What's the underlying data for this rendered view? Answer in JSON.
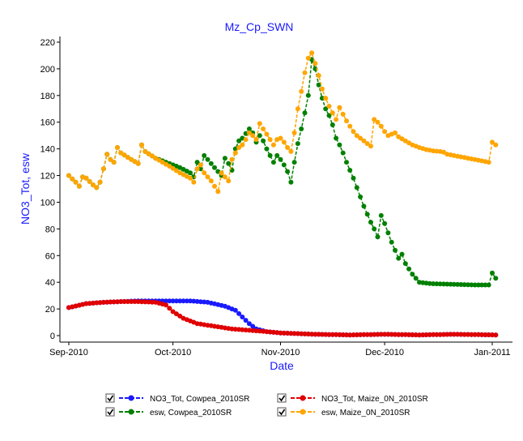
{
  "chart_data": {
    "type": "line",
    "title": "Mz_Cp_SWN",
    "xlabel": "Date",
    "ylabel": "NO3_Tot, esw",
    "xlim": [
      "2010-08-30",
      "2011-01-04"
    ],
    "ylim": [
      0,
      220
    ],
    "y_ticks": [
      0,
      20,
      40,
      60,
      80,
      100,
      120,
      140,
      160,
      180,
      200,
      220
    ],
    "x_ticks": [
      {
        "date": "2010-09-01",
        "label": "Sep-2010"
      },
      {
        "date": "2010-10-01",
        "label": "Oct-2010"
      },
      {
        "date": "2010-11-01",
        "label": "Nov-2010"
      },
      {
        "date": "2010-12-01",
        "label": "Dec-2010"
      },
      {
        "date": "2011-01-01",
        "label": "Jan-2011"
      }
    ],
    "grid": false,
    "legend_position": "bottom",
    "series": [
      {
        "name": "NO3_Tot, Cowpea_2010SR",
        "color": "#1a1aff",
        "checked": true,
        "points": [
          [
            "2010-09-01",
            21
          ],
          [
            "2010-09-06",
            24
          ],
          [
            "2010-09-11",
            25
          ],
          [
            "2010-09-16",
            25.5
          ],
          [
            "2010-09-21",
            26
          ],
          [
            "2010-09-26",
            26
          ],
          [
            "2010-10-01",
            26
          ],
          [
            "2010-10-06",
            26
          ],
          [
            "2010-10-11",
            25
          ],
          [
            "2010-10-16",
            22
          ],
          [
            "2010-10-19",
            19
          ],
          [
            "2010-10-21",
            14
          ],
          [
            "2010-10-23",
            9
          ],
          [
            "2010-10-25",
            5
          ],
          [
            "2010-10-28",
            3
          ],
          [
            "2010-11-01",
            2
          ],
          [
            "2010-11-06",
            1.5
          ],
          [
            "2010-11-11",
            1
          ],
          [
            "2010-11-21",
            0.5
          ],
          [
            "2010-12-01",
            1
          ],
          [
            "2010-12-11",
            0.5
          ],
          [
            "2010-12-21",
            1
          ],
          [
            "2011-01-02",
            0.5
          ]
        ]
      },
      {
        "name": "esw, Cowpea_2010SR",
        "color": "#008000",
        "checked": true,
        "points": [
          [
            "2010-09-01",
            120
          ],
          [
            "2010-09-03",
            115
          ],
          [
            "2010-09-04",
            112
          ],
          [
            "2010-09-05",
            119
          ],
          [
            "2010-09-06",
            118
          ],
          [
            "2010-09-08",
            113
          ],
          [
            "2010-09-09",
            111
          ],
          [
            "2010-09-10",
            115
          ],
          [
            "2010-09-11",
            125
          ],
          [
            "2010-09-12",
            136
          ],
          [
            "2010-09-13",
            132
          ],
          [
            "2010-09-14",
            130
          ],
          [
            "2010-09-15",
            141
          ],
          [
            "2010-09-16",
            137
          ],
          [
            "2010-09-19",
            132
          ],
          [
            "2010-09-21",
            129
          ],
          [
            "2010-09-22",
            143
          ],
          [
            "2010-09-23",
            138
          ],
          [
            "2010-09-26",
            133
          ],
          [
            "2010-09-30",
            129
          ],
          [
            "2010-10-03",
            126
          ],
          [
            "2010-10-06",
            122
          ],
          [
            "2010-10-07",
            119
          ],
          [
            "2010-10-08",
            130
          ],
          [
            "2010-10-09",
            125
          ],
          [
            "2010-10-10",
            135
          ],
          [
            "2010-10-11",
            132
          ],
          [
            "2010-10-13",
            126
          ],
          [
            "2010-10-14",
            123
          ],
          [
            "2010-10-15",
            120
          ],
          [
            "2010-10-16",
            133
          ],
          [
            "2010-10-17",
            129
          ],
          [
            "2010-10-18",
            124
          ],
          [
            "2010-10-19",
            140
          ],
          [
            "2010-10-20",
            146
          ],
          [
            "2010-10-21",
            148
          ],
          [
            "2010-10-23",
            155
          ],
          [
            "2010-10-24",
            152
          ],
          [
            "2010-10-25",
            145
          ],
          [
            "2010-10-26",
            150
          ],
          [
            "2010-10-27",
            146
          ],
          [
            "2010-10-28",
            140
          ],
          [
            "2010-10-29",
            135
          ],
          [
            "2010-10-30",
            130
          ],
          [
            "2010-10-31",
            135
          ],
          [
            "2010-11-01",
            132
          ],
          [
            "2010-11-02",
            128
          ],
          [
            "2010-11-03",
            123
          ],
          [
            "2010-11-04",
            115
          ],
          [
            "2010-11-05",
            130
          ],
          [
            "2010-11-06",
            144
          ],
          [
            "2010-11-07",
            155
          ],
          [
            "2010-11-08",
            167
          ],
          [
            "2010-11-09",
            180
          ],
          [
            "2010-11-10",
            207
          ],
          [
            "2010-11-11",
            200
          ],
          [
            "2010-11-12",
            188
          ],
          [
            "2010-11-13",
            178
          ],
          [
            "2010-11-14",
            170
          ],
          [
            "2010-11-15",
            165
          ],
          [
            "2010-11-16",
            158
          ],
          [
            "2010-11-17",
            148
          ],
          [
            "2010-11-18",
            143
          ],
          [
            "2010-11-19",
            137
          ],
          [
            "2010-11-20",
            130
          ],
          [
            "2010-11-21",
            124
          ],
          [
            "2010-11-22",
            118
          ],
          [
            "2010-11-23",
            111
          ],
          [
            "2010-11-24",
            104
          ],
          [
            "2010-11-25",
            97
          ],
          [
            "2010-11-26",
            91
          ],
          [
            "2010-11-27",
            85
          ],
          [
            "2010-11-28",
            80
          ],
          [
            "2010-11-29",
            74
          ],
          [
            "2010-11-30",
            90
          ],
          [
            "2010-12-01",
            84
          ],
          [
            "2010-12-02",
            77
          ],
          [
            "2010-12-03",
            70
          ],
          [
            "2010-12-04",
            64
          ],
          [
            "2010-12-05",
            58
          ],
          [
            "2010-12-06",
            61
          ],
          [
            "2010-12-07",
            54
          ],
          [
            "2010-12-08",
            50
          ],
          [
            "2010-12-09",
            46
          ],
          [
            "2010-12-10",
            43
          ],
          [
            "2010-12-11",
            40
          ],
          [
            "2010-12-14",
            39
          ],
          [
            "2010-12-20",
            38.5
          ],
          [
            "2010-12-27",
            38
          ],
          [
            "2010-12-31",
            38
          ],
          [
            "2011-01-01",
            47
          ],
          [
            "2011-01-02",
            43
          ]
        ]
      },
      {
        "name": "NO3_Tot, Maize_0N_2010SR",
        "color": "#e00000",
        "checked": true,
        "points": [
          [
            "2010-09-01",
            21
          ],
          [
            "2010-09-06",
            24
          ],
          [
            "2010-09-11",
            25
          ],
          [
            "2010-09-16",
            25.5
          ],
          [
            "2010-09-21",
            25.5
          ],
          [
            "2010-09-26",
            25
          ],
          [
            "2010-09-29",
            23
          ],
          [
            "2010-10-01",
            18
          ],
          [
            "2010-10-04",
            13
          ],
          [
            "2010-10-08",
            9
          ],
          [
            "2010-10-13",
            7
          ],
          [
            "2010-10-18",
            5
          ],
          [
            "2010-10-23",
            4
          ],
          [
            "2010-10-28",
            3
          ],
          [
            "2010-11-01",
            2
          ],
          [
            "2010-11-06",
            1.5
          ],
          [
            "2010-11-11",
            1
          ],
          [
            "2010-11-21",
            0.5
          ],
          [
            "2010-12-01",
            1
          ],
          [
            "2010-12-11",
            0.5
          ],
          [
            "2010-12-21",
            1
          ],
          [
            "2011-01-02",
            0.5
          ]
        ]
      },
      {
        "name": "esw, Maize_0N_2010SR",
        "color": "#ffa500",
        "checked": true,
        "points": [
          [
            "2010-09-01",
            120
          ],
          [
            "2010-09-03",
            115
          ],
          [
            "2010-09-04",
            112
          ],
          [
            "2010-09-05",
            119
          ],
          [
            "2010-09-06",
            118
          ],
          [
            "2010-09-08",
            113
          ],
          [
            "2010-09-09",
            111
          ],
          [
            "2010-09-10",
            115
          ],
          [
            "2010-09-11",
            125
          ],
          [
            "2010-09-12",
            136
          ],
          [
            "2010-09-13",
            132
          ],
          [
            "2010-09-14",
            130
          ],
          [
            "2010-09-15",
            141
          ],
          [
            "2010-09-16",
            137
          ],
          [
            "2010-09-19",
            132
          ],
          [
            "2010-09-21",
            129
          ],
          [
            "2010-09-22",
            143
          ],
          [
            "2010-09-23",
            138
          ],
          [
            "2010-09-26",
            133
          ],
          [
            "2010-09-30",
            127
          ],
          [
            "2010-10-03",
            122
          ],
          [
            "2010-10-06",
            118
          ],
          [
            "2010-10-07",
            115
          ],
          [
            "2010-10-08",
            125
          ],
          [
            "2010-10-09",
            128
          ],
          [
            "2010-10-10",
            122
          ],
          [
            "2010-10-11",
            119
          ],
          [
            "2010-10-12",
            116
          ],
          [
            "2010-10-13",
            112
          ],
          [
            "2010-10-14",
            108
          ],
          [
            "2010-10-15",
            122
          ],
          [
            "2010-10-16",
            119
          ],
          [
            "2010-10-17",
            116
          ],
          [
            "2010-10-18",
            132
          ],
          [
            "2010-10-19",
            137
          ],
          [
            "2010-10-20",
            141
          ],
          [
            "2010-10-21",
            143
          ],
          [
            "2010-10-22",
            147
          ],
          [
            "2010-10-23",
            152
          ],
          [
            "2010-10-24",
            150
          ],
          [
            "2010-10-25",
            147
          ],
          [
            "2010-10-26",
            159
          ],
          [
            "2010-10-27",
            155
          ],
          [
            "2010-10-28",
            151
          ],
          [
            "2010-10-29",
            147
          ],
          [
            "2010-10-30",
            143
          ],
          [
            "2010-10-31",
            147
          ],
          [
            "2010-11-01",
            148
          ],
          [
            "2010-11-02",
            145
          ],
          [
            "2010-11-03",
            141
          ],
          [
            "2010-11-04",
            138
          ],
          [
            "2010-11-05",
            152
          ],
          [
            "2010-11-06",
            170
          ],
          [
            "2010-11-07",
            183
          ],
          [
            "2010-11-08",
            197
          ],
          [
            "2010-11-09",
            208
          ],
          [
            "2010-11-10",
            212
          ],
          [
            "2010-11-11",
            204
          ],
          [
            "2010-11-12",
            195
          ],
          [
            "2010-11-13",
            185
          ],
          [
            "2010-11-14",
            178
          ],
          [
            "2010-11-15",
            172
          ],
          [
            "2010-11-16",
            167
          ],
          [
            "2010-11-17",
            162
          ],
          [
            "2010-11-18",
            171
          ],
          [
            "2010-11-19",
            166
          ],
          [
            "2010-11-20",
            161
          ],
          [
            "2010-11-21",
            157
          ],
          [
            "2010-11-22",
            153
          ],
          [
            "2010-11-23",
            150
          ],
          [
            "2010-11-24",
            148
          ],
          [
            "2010-11-25",
            146
          ],
          [
            "2010-11-26",
            144
          ],
          [
            "2010-11-27",
            142
          ],
          [
            "2010-11-28",
            162
          ],
          [
            "2010-11-29",
            160
          ],
          [
            "2010-11-30",
            157
          ],
          [
            "2010-12-01",
            153
          ],
          [
            "2010-12-02",
            150
          ],
          [
            "2010-12-04",
            152
          ],
          [
            "2010-12-05",
            149
          ],
          [
            "2010-12-07",
            146
          ],
          [
            "2010-12-09",
            143
          ],
          [
            "2010-12-11",
            141
          ],
          [
            "2010-12-13",
            139.5
          ],
          [
            "2010-12-15",
            138.5
          ],
          [
            "2010-12-17",
            138
          ],
          [
            "2010-12-18",
            137.5
          ],
          [
            "2010-12-19",
            136
          ],
          [
            "2010-12-21",
            135
          ],
          [
            "2010-12-23",
            134
          ],
          [
            "2010-12-25",
            133
          ],
          [
            "2010-12-27",
            132
          ],
          [
            "2010-12-29",
            131
          ],
          [
            "2010-12-31",
            130
          ],
          [
            "2011-01-01",
            145
          ],
          [
            "2011-01-02",
            143
          ]
        ]
      }
    ]
  }
}
